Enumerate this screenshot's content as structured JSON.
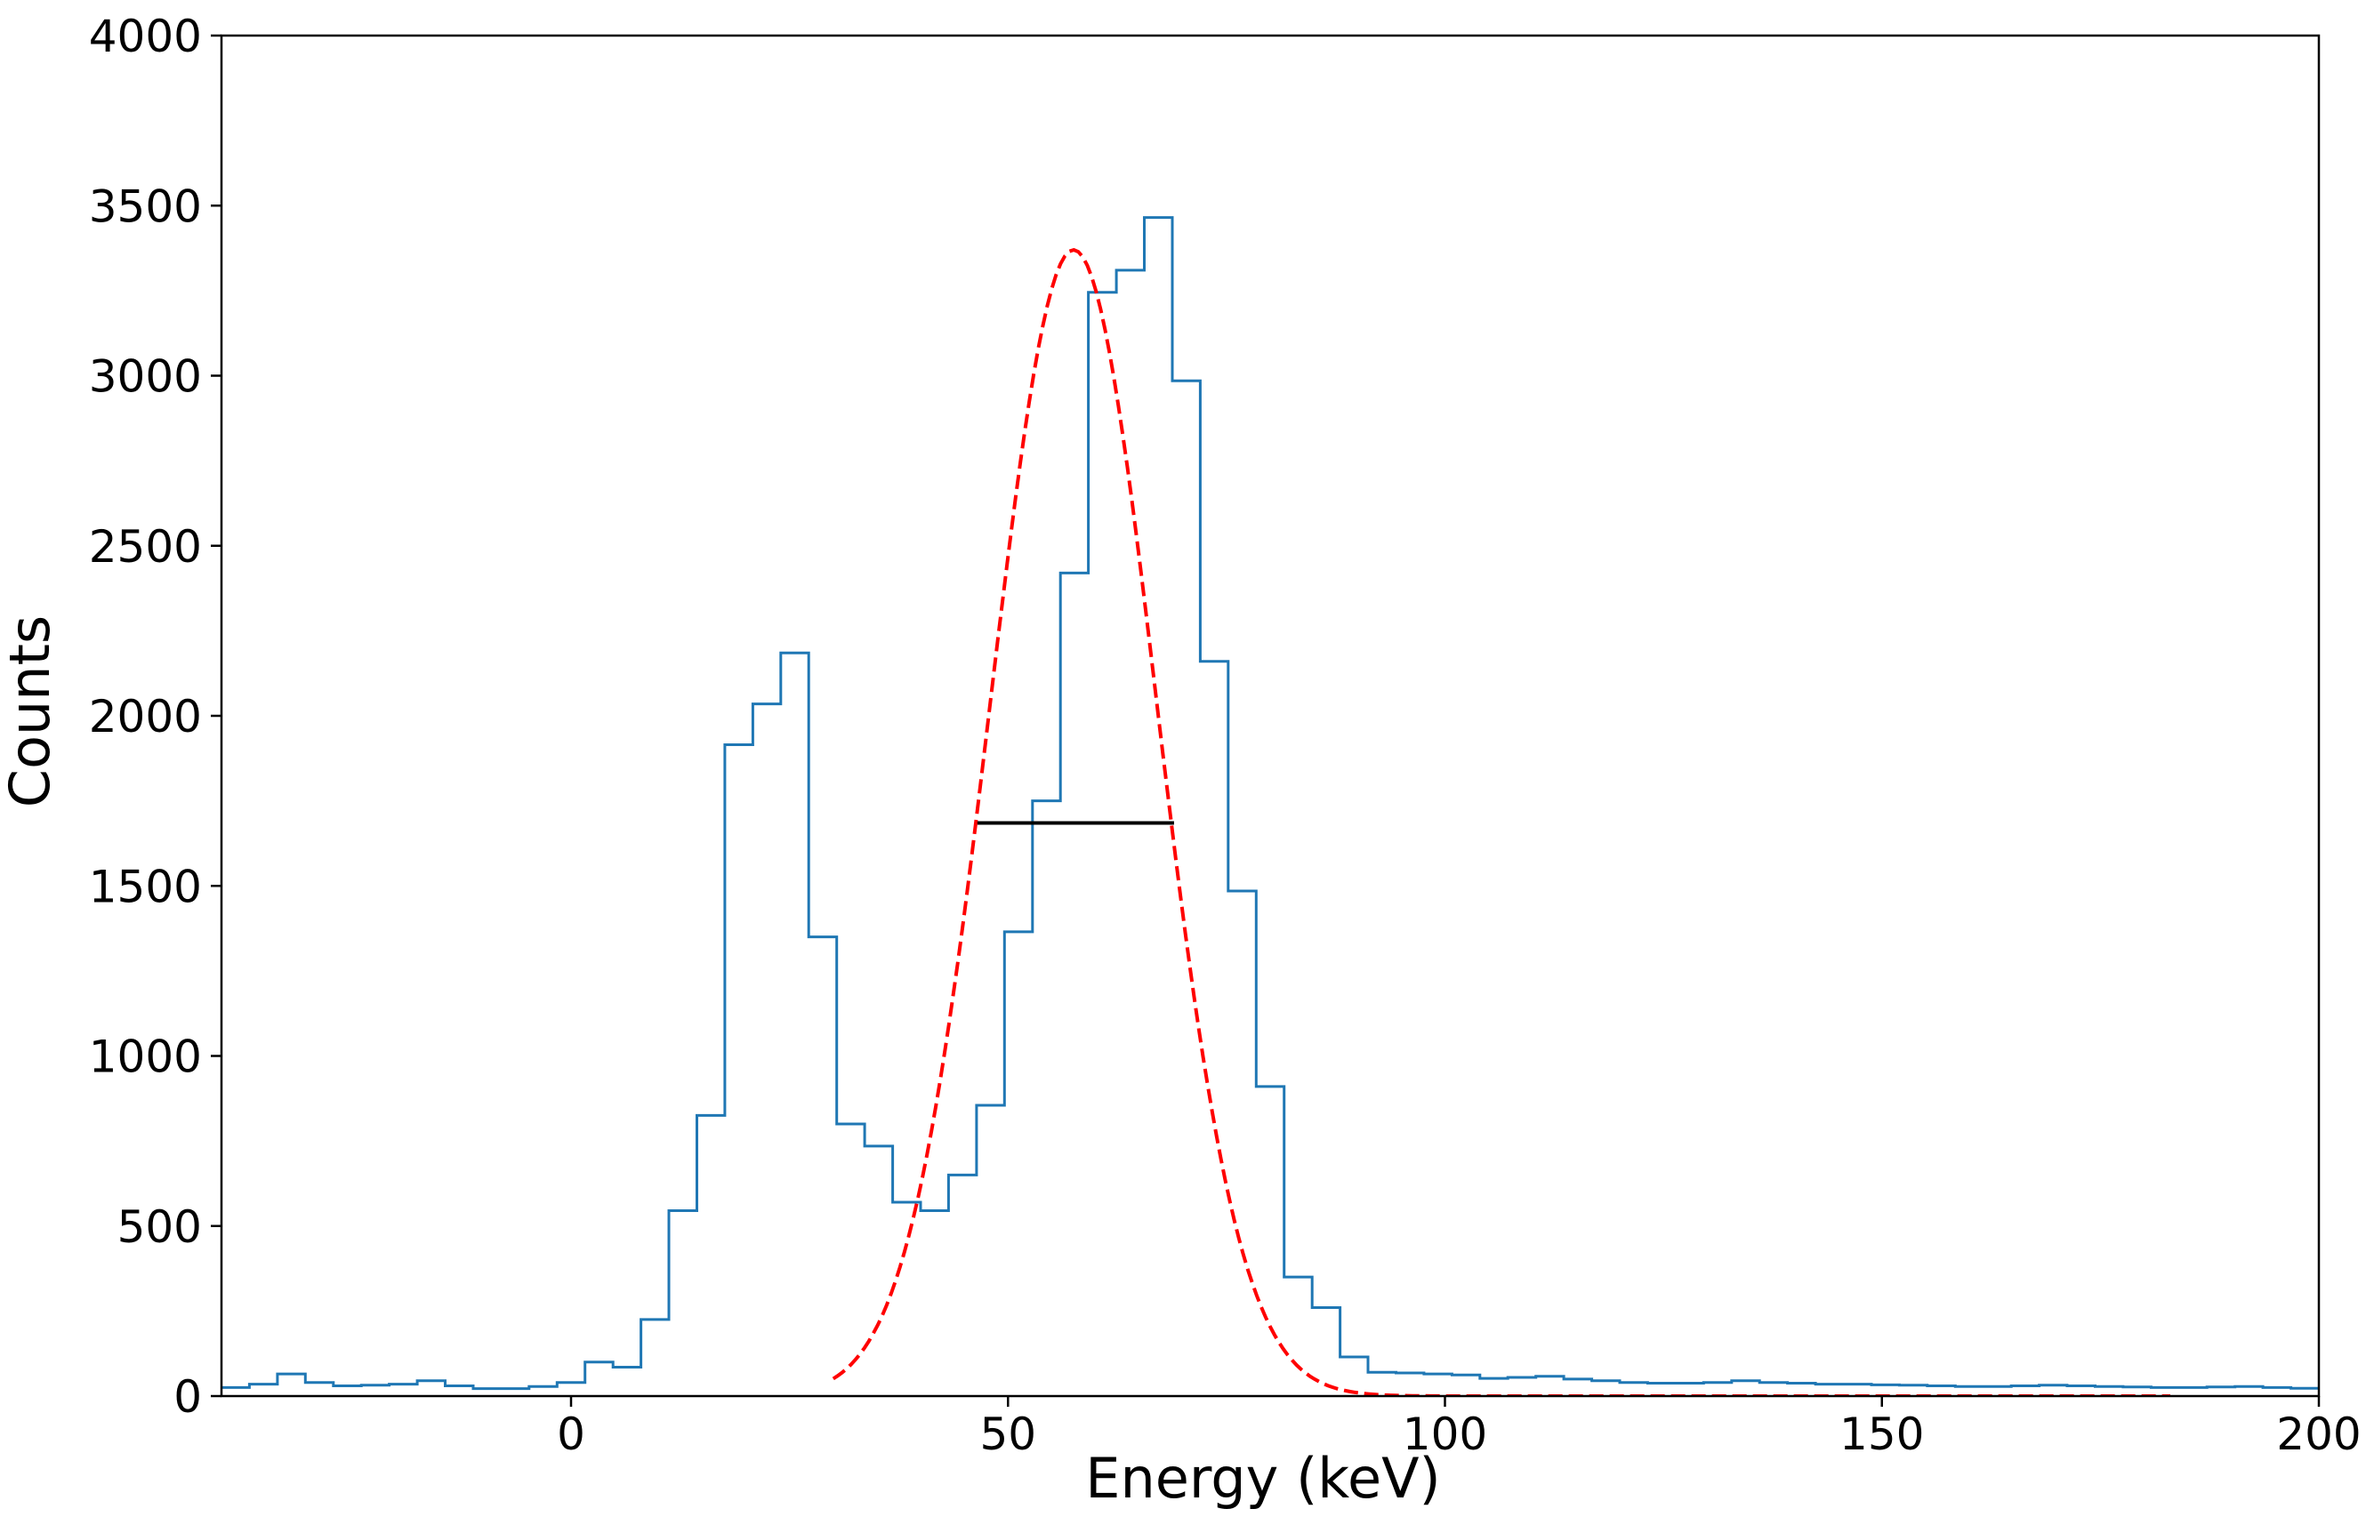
{
  "chart_data": {
    "type": "histogram",
    "xlabel": "Energy (keV)",
    "ylabel": "Counts",
    "xlim": [
      -40,
      200
    ],
    "ylim": [
      0,
      4000
    ],
    "x_ticks": [
      0,
      50,
      100,
      150,
      200
    ],
    "y_ticks": [
      0,
      500,
      1000,
      1500,
      2000,
      2500,
      3000,
      3500,
      4000
    ],
    "grid": false,
    "histogram": {
      "color": "#1f77b4",
      "bin_width": 3.2,
      "bin_edges_start": -40,
      "counts": [
        25,
        35,
        65,
        40,
        30,
        32,
        35,
        45,
        30,
        22,
        22,
        28,
        40,
        100,
        85,
        225,
        545,
        825,
        1915,
        2035,
        2185,
        1350,
        800,
        735,
        570,
        545,
        650,
        855,
        1365,
        1750,
        2420,
        3245,
        3310,
        3465,
        2985,
        2160,
        1485,
        910,
        350,
        260,
        115,
        70,
        68,
        65,
        62,
        52,
        55,
        58,
        50,
        45,
        40,
        38,
        38,
        40,
        45,
        40,
        38,
        35,
        35,
        33,
        32,
        30,
        28,
        28,
        30,
        32,
        30,
        28,
        27,
        25,
        25,
        27,
        28,
        25,
        23
      ]
    },
    "gaussian_fit": {
      "color": "#ff0000",
      "style": "dashed",
      "amplitude": 3370,
      "mean": 57.5,
      "sigma": 9.5,
      "x_range": [
        30,
        183
      ]
    },
    "fwhm_line": {
      "color": "#000000",
      "x_start": 46.5,
      "x_end": 69,
      "y": 1685
    }
  }
}
